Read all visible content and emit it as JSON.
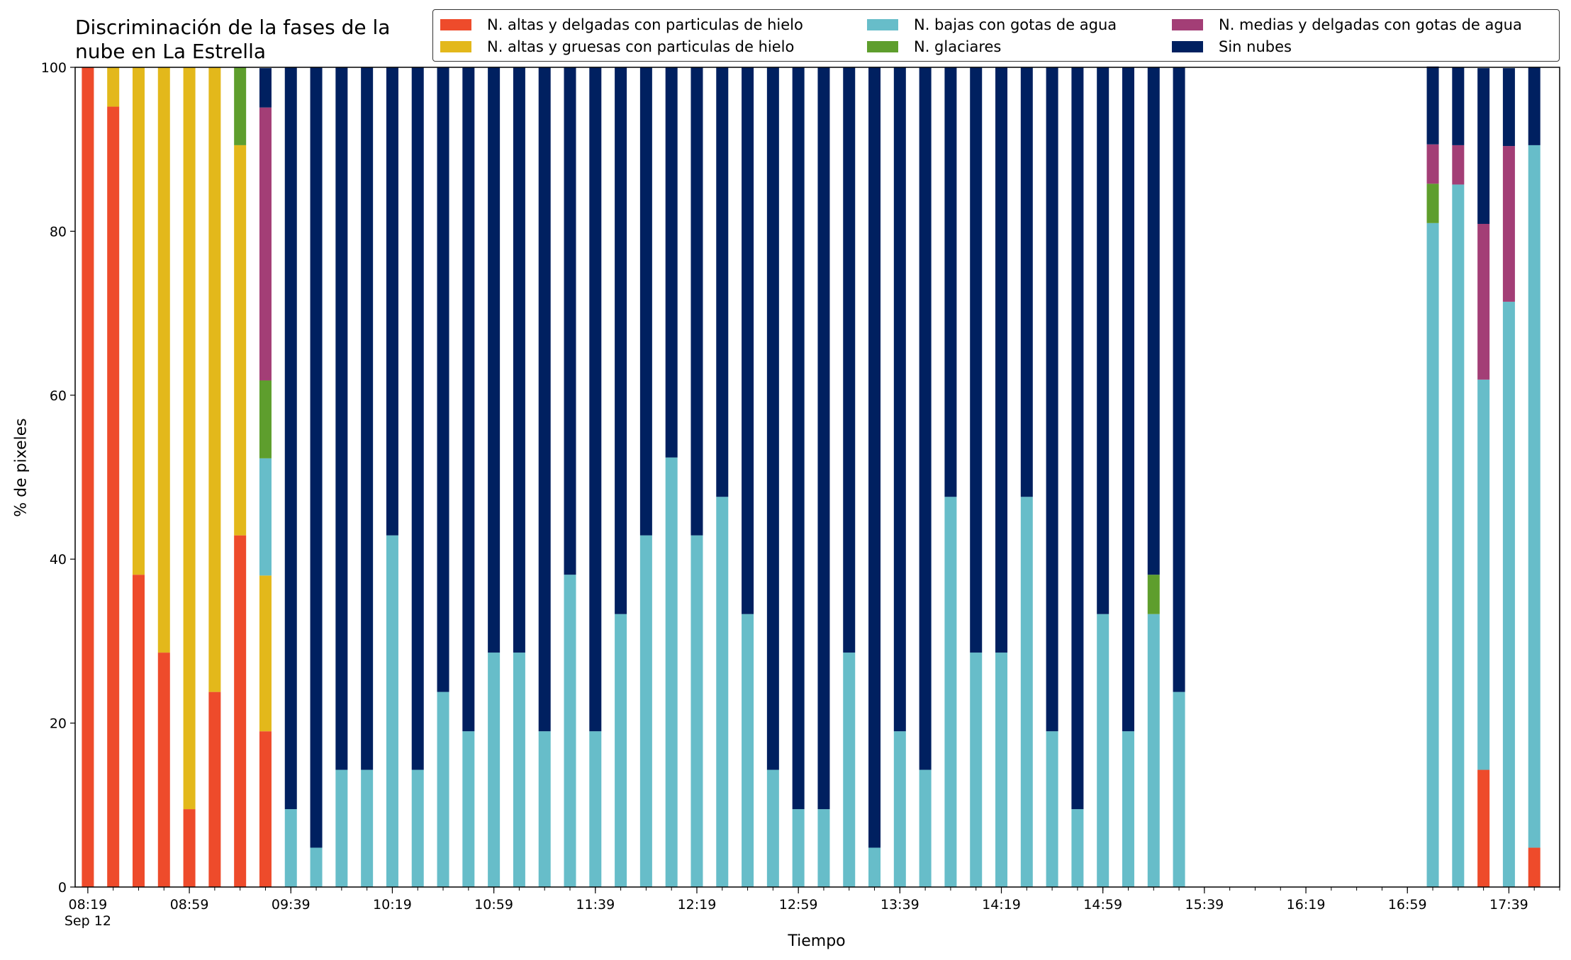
{
  "chart_data": {
    "type": "bar",
    "stacked": true,
    "title": "Discriminación de la fases de la\nnube en La Estrella",
    "xlabel": "Tiempo",
    "ylabel": "% de pixeles",
    "ylim": [
      0,
      100
    ],
    "yticks": [
      "0",
      "20",
      "40",
      "60",
      "80",
      "100"
    ],
    "xlim": [
      "08:14",
      "17:59"
    ],
    "xtick_labels": [
      "08:19\nSep 12",
      "08:59",
      "09:39",
      "10:19",
      "10:59",
      "11:39",
      "12:19",
      "12:59",
      "13:39",
      "14:19",
      "14:59",
      "15:39",
      "16:19",
      "16:59",
      "17:39"
    ],
    "legend_position": "top",
    "grid": false,
    "x": [
      "08:19",
      "08:29",
      "08:39",
      "08:49",
      "08:59",
      "09:09",
      "09:19",
      "09:29",
      "09:39",
      "09:49",
      "09:59",
      "10:09",
      "10:19",
      "10:29",
      "10:39",
      "10:49",
      "10:59",
      "11:09",
      "11:19",
      "11:29",
      "11:39",
      "11:49",
      "11:59",
      "12:09",
      "12:19",
      "12:29",
      "12:39",
      "12:49",
      "12:59",
      "13:09",
      "13:19",
      "13:29",
      "13:39",
      "13:49",
      "13:59",
      "14:09",
      "14:19",
      "14:29",
      "14:39",
      "14:49",
      "14:59",
      "15:09",
      "15:19",
      "15:29",
      "15:39",
      "15:49",
      "15:59",
      "16:09",
      "16:19",
      "16:29",
      "16:39",
      "16:49",
      "16:59",
      "17:09",
      "17:19",
      "17:29",
      "17:39",
      "17:49"
    ],
    "series": [
      {
        "name": "N. altas y delgadas con particulas de hielo",
        "color": "#ee4b2b",
        "values": [
          100,
          95.2,
          38.1,
          28.6,
          9.5,
          23.8,
          42.9,
          19.0,
          0,
          0,
          0,
          0,
          0,
          0,
          0,
          0,
          0,
          0,
          0,
          0,
          0,
          0,
          0,
          0,
          0,
          0,
          0,
          0,
          0,
          0,
          0,
          0,
          0,
          0,
          0,
          0,
          0,
          0,
          0,
          0,
          0,
          0,
          0,
          0,
          null,
          null,
          null,
          null,
          null,
          null,
          null,
          null,
          null,
          0,
          0,
          14.3,
          0,
          4.8
        ]
      },
      {
        "name": "N. altas y gruesas con particulas de hielo",
        "color": "#e3b81b",
        "values": [
          0,
          4.8,
          61.9,
          71.4,
          90.5,
          76.2,
          47.6,
          19.0,
          0,
          0,
          0,
          0,
          0,
          0,
          0,
          0,
          0,
          0,
          0,
          0,
          0,
          0,
          0,
          0,
          0,
          0,
          0,
          0,
          0,
          0,
          0,
          0,
          0,
          0,
          0,
          0,
          0,
          0,
          0,
          0,
          0,
          0,
          0,
          0,
          null,
          null,
          null,
          null,
          null,
          null,
          null,
          null,
          null,
          0,
          0,
          0,
          0,
          0
        ]
      },
      {
        "name": "N. bajas con gotas de agua",
        "color": "#67bdc9",
        "values": [
          0,
          0,
          0,
          0,
          0,
          0,
          0,
          14.3,
          9.5,
          4.8,
          14.3,
          14.3,
          42.9,
          14.3,
          23.8,
          19.0,
          28.6,
          28.6,
          19.0,
          38.1,
          19.0,
          33.3,
          42.9,
          52.4,
          42.9,
          47.6,
          33.3,
          14.3,
          9.5,
          9.5,
          28.6,
          4.8,
          19.0,
          14.3,
          47.6,
          28.6,
          28.6,
          47.6,
          19.0,
          9.5,
          33.3,
          19.0,
          33.3,
          23.8,
          null,
          null,
          null,
          null,
          null,
          null,
          null,
          null,
          null,
          81.0,
          85.7,
          47.6,
          71.4,
          85.7
        ]
      },
      {
        "name": "N. glaciares",
        "color": "#5e9e2d",
        "values": [
          0,
          0,
          0,
          0,
          0,
          0,
          9.5,
          9.5,
          0,
          0,
          0,
          0,
          0,
          0,
          0,
          0,
          0,
          0,
          0,
          0,
          0,
          0,
          0,
          0,
          0,
          0,
          0,
          0,
          0,
          0,
          0,
          0,
          0,
          0,
          0,
          0,
          0,
          0,
          0,
          0,
          0,
          0,
          4.8,
          0,
          null,
          null,
          null,
          null,
          null,
          null,
          null,
          null,
          null,
          4.8,
          0,
          0,
          0,
          0
        ]
      },
      {
        "name": "N. medias y delgadas con gotas de agua",
        "color": "#a33e76",
        "values": [
          0,
          0,
          0,
          0,
          0,
          0,
          0,
          33.3,
          0,
          0,
          0,
          0,
          0,
          0,
          0,
          0,
          0,
          0,
          0,
          0,
          0,
          0,
          0,
          0,
          0,
          0,
          0,
          0,
          0,
          0,
          0,
          0,
          0,
          0,
          0,
          0,
          0,
          0,
          0,
          0,
          0,
          0,
          0,
          0,
          null,
          null,
          null,
          null,
          null,
          null,
          null,
          null,
          null,
          4.8,
          4.8,
          19.0,
          19.0,
          0
        ]
      },
      {
        "name": "Sin nubes",
        "color": "#002060",
        "values": [
          0,
          0,
          0,
          0,
          0,
          0,
          0,
          4.8,
          90.5,
          95.2,
          85.7,
          85.7,
          57.1,
          85.7,
          76.2,
          81.0,
          71.4,
          71.4,
          81.0,
          61.9,
          81.0,
          66.7,
          57.1,
          47.6,
          57.1,
          52.4,
          66.7,
          85.7,
          90.5,
          90.5,
          71.4,
          95.2,
          81.0,
          85.7,
          52.4,
          71.4,
          71.4,
          52.4,
          81.0,
          90.5,
          66.7,
          81.0,
          61.9,
          76.2,
          null,
          null,
          null,
          null,
          null,
          null,
          null,
          null,
          null,
          9.5,
          9.5,
          19.0,
          9.5,
          9.5
        ]
      }
    ]
  }
}
